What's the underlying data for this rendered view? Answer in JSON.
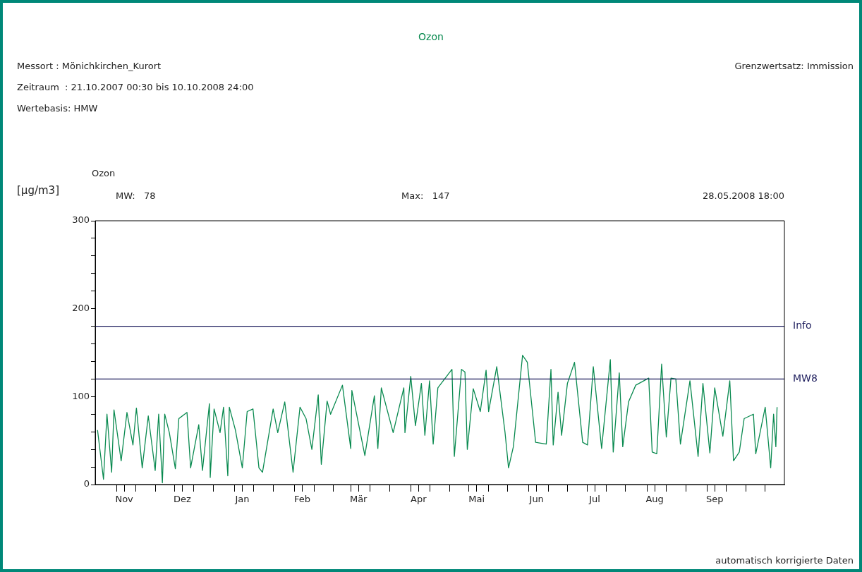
{
  "chart_data": {
    "type": "line",
    "title": "Ozon",
    "subtitle": "Ozon",
    "ylabel": "[μg/m3]",
    "annotations": [
      "Messort : Mönichkirchen_Kurort",
      "Grenzwertsatz: Immission",
      "Zeitraum  : 21.10.2007 00:30 bis 10.10.2008 24:00",
      "Wertebasis: HMW",
      "MW:   78",
      "Max:   147",
      "28.05.2008 18:00",
      "automatisch korrigierte Daten"
    ],
    "x": [
      "2007-10-22T05:00",
      "2007-10-25T07:00",
      "2007-10-27T02:00",
      "2007-10-29T12:00",
      "2007-10-30T17:00",
      "2007-11-03T10:00",
      "2007-11-06T10:00",
      "2007-11-09T12:00",
      "2007-11-11T07:00",
      "2007-11-14T07:00",
      "2007-11-17T10:00",
      "2007-11-21T00:00",
      "2007-11-22T19:00",
      "2007-11-24T17:00",
      "2007-11-25T22:00",
      "2007-11-28T07:00",
      "2007-12-01T10:00",
      "2007-12-03T05:00",
      "2007-12-07T10:00",
      "2007-12-09T07:00",
      "2007-12-13T12:00",
      "2007-12-15T10:00",
      "2007-12-19T00:00",
      "2007-12-19T10:00",
      "2007-12-21T10:00",
      "2007-12-24T12:00",
      "2007-12-26T07:00",
      "2007-12-28T12:00",
      "2007-12-29T07:00",
      "2008-01-01T10:00",
      "2008-01-05T00:00",
      "2008-01-07T12:00",
      "2008-01-10T12:00",
      "2008-01-13T14:00",
      "2008-01-15T10:00",
      "2008-01-20T22:00",
      "2008-01-23T07:00",
      "2008-01-26T22:00",
      "2008-01-31T05:00",
      "2008-02-03T19:00",
      "2008-02-06T22:00",
      "2008-02-09T22:00",
      "2008-02-13T05:00",
      "2008-02-14T19:00",
      "2008-02-17T19:00",
      "2008-02-19T14:00",
      "2008-02-25T17:00",
      "2008-03-01T00:00",
      "2008-03-01T14:00",
      "2008-03-08T07:00",
      "2008-03-13T05:00",
      "2008-03-15T00:00",
      "2008-03-16T19:00",
      "2008-03-22T22:00",
      "2008-03-28T10:00",
      "2008-03-29T00:00",
      "2008-04-01T00:00",
      "2008-04-03T10:00",
      "2008-04-06T12:00",
      "2008-04-08T07:00",
      "2008-04-10T17:00",
      "2008-04-12T14:00",
      "2008-04-15T00:00",
      "2008-04-22T07:00",
      "2008-04-23T12:00",
      "2008-04-27T05:00",
      "2008-04-29T00:00",
      "2008-04-30T05:00",
      "2008-05-03T07:00",
      "2008-05-06T22:00",
      "2008-05-09T22:00",
      "2008-05-11T05:00",
      "2008-05-15T10:00",
      "2008-05-19T17:00",
      "2008-05-21T12:00",
      "2008-05-24T00:00",
      "2008-05-28T18:00",
      "2008-05-31T05:00",
      "2008-06-02T17:00",
      "2008-06-04T12:00",
      "2008-06-10T00:00",
      "2008-06-12T10:00",
      "2008-06-13T14:00",
      "2008-06-16T02:00",
      "2008-06-17T22:00",
      "2008-06-20T22:00",
      "2008-06-24T14:00",
      "2008-06-28T19:00",
      "2008-07-01T07:00",
      "2008-07-04T07:00",
      "2008-07-08T14:00",
      "2008-07-13T02:00",
      "2008-07-14T14:00",
      "2008-07-17T17:00",
      "2008-07-19T12:00",
      "2008-07-22T12:00",
      "2008-07-26T05:00",
      "2008-08-01T22:00",
      "2008-08-03T17:00",
      "2008-08-06T02:00",
      "2008-08-08T14:00",
      "2008-08-11T00:00",
      "2008-08-13T10:00",
      "2008-08-15T22:00",
      "2008-08-18T07:00",
      "2008-08-23T05:00",
      "2008-08-27T10:00",
      "2008-08-29T22:00",
      "2008-09-02T12:00",
      "2008-09-05T00:00",
      "2008-09-09T05:00",
      "2008-09-12T19:00",
      "2008-09-14T17:00",
      "2008-09-17T17:00",
      "2008-09-20T05:00",
      "2008-09-25T00:00",
      "2008-09-26T05:00",
      "2008-10-01T02:00",
      "2008-10-03T22:00",
      "2008-10-05T10:00",
      "2008-10-06T14:00",
      "2008-10-07T05:00"
    ],
    "series": [
      {
        "color": "#0a8a50",
        "values": [
          62,
          6,
          80,
          14,
          85,
          27,
          82,
          45,
          87,
          19,
          78,
          16,
          80,
          2,
          80,
          59,
          18,
          75,
          82,
          19,
          68,
          16,
          92,
          8,
          86,
          59,
          88,
          10,
          88,
          62,
          19,
          83,
          86,
          19,
          14,
          86,
          59,
          94,
          14,
          88,
          75,
          40,
          102,
          23,
          95,
          80,
          113,
          41,
          107,
          33,
          101,
          41,
          110,
          59,
          110,
          59,
          123,
          67,
          115,
          56,
          118,
          46,
          110,
          131,
          32,
          131,
          128,
          40,
          109,
          83,
          130,
          83,
          134,
          59,
          19,
          43,
          147,
          139,
          86,
          48,
          46,
          131,
          45,
          105,
          56,
          115,
          139,
          48,
          45,
          134,
          41,
          142,
          37,
          127,
          43,
          94,
          113,
          121,
          37,
          35,
          137,
          54,
          121,
          120,
          46,
          118,
          32,
          115,
          36,
          110,
          55,
          118,
          27,
          37,
          75,
          80,
          35,
          88,
          19,
          80,
          43,
          88
        ]
      }
    ],
    "xlim": [
      "2007-10-21T00:30",
      "2008-10-11T00:00"
    ],
    "xticks": [
      {
        "value": "2007-11-01",
        "label": null
      },
      {
        "value": "2007-11-11",
        "label": null
      },
      {
        "value": "2007-11-05",
        "label": "Nov"
      },
      {
        "value": "2007-11-21",
        "label": null
      },
      {
        "value": "2007-12-01",
        "label": null
      },
      {
        "value": "2007-12-11",
        "label": null
      },
      {
        "value": "2007-12-05",
        "label": "Dez"
      },
      {
        "value": "2007-12-21",
        "label": null
      },
      {
        "value": "2008-01-01",
        "label": null
      },
      {
        "value": "2008-01-11",
        "label": null
      },
      {
        "value": "2008-01-05",
        "label": "Jan"
      },
      {
        "value": "2008-01-21",
        "label": null
      },
      {
        "value": "2008-02-01",
        "label": null
      },
      {
        "value": "2008-02-11",
        "label": null
      },
      {
        "value": "2008-02-05",
        "label": "Feb"
      },
      {
        "value": "2008-02-21",
        "label": null
      },
      {
        "value": "2008-03-01",
        "label": null
      },
      {
        "value": "2008-03-11",
        "label": null
      },
      {
        "value": "2008-03-05",
        "label": "Mär"
      },
      {
        "value": "2008-03-21",
        "label": null
      },
      {
        "value": "2008-04-01",
        "label": null
      },
      {
        "value": "2008-04-11",
        "label": null
      },
      {
        "value": "2008-04-05",
        "label": "Apr"
      },
      {
        "value": "2008-04-21",
        "label": null
      },
      {
        "value": "2008-05-01",
        "label": null
      },
      {
        "value": "2008-05-11",
        "label": null
      },
      {
        "value": "2008-05-05",
        "label": "Mai"
      },
      {
        "value": "2008-05-21",
        "label": null
      },
      {
        "value": "2008-06-01",
        "label": null
      },
      {
        "value": "2008-06-11",
        "label": null
      },
      {
        "value": "2008-06-05",
        "label": "Jun"
      },
      {
        "value": "2008-06-21",
        "label": null
      },
      {
        "value": "2008-07-01",
        "label": null
      },
      {
        "value": "2008-07-11",
        "label": null
      },
      {
        "value": "2008-07-05",
        "label": "Jul"
      },
      {
        "value": "2008-07-21",
        "label": null
      },
      {
        "value": "2008-08-01",
        "label": null
      },
      {
        "value": "2008-08-11",
        "label": null
      },
      {
        "value": "2008-08-05",
        "label": "Aug"
      },
      {
        "value": "2008-08-21",
        "label": null
      },
      {
        "value": "2008-09-01",
        "label": null
      },
      {
        "value": "2008-09-11",
        "label": null
      },
      {
        "value": "2008-09-05",
        "label": "Sep"
      },
      {
        "value": "2008-09-21",
        "label": null
      },
      {
        "value": "2008-10-01",
        "label": null
      }
    ],
    "ylim": [
      0,
      300
    ],
    "yticks": [
      0,
      {
        "value": 20,
        "label": null
      },
      {
        "value": 40,
        "label": null
      },
      {
        "value": 60,
        "label": null
      },
      {
        "value": 80,
        "label": null
      },
      100,
      {
        "value": 120,
        "label": null
      },
      {
        "value": 140,
        "label": null
      },
      {
        "value": 160,
        "label": null
      },
      {
        "value": 180,
        "label": null
      },
      200,
      {
        "value": 220,
        "label": null
      },
      {
        "value": 240,
        "label": null
      },
      {
        "value": 260,
        "label": null
      },
      {
        "value": 280,
        "label": null
      },
      300
    ],
    "ref_lines": [
      {
        "axis": "y",
        "value": 180,
        "label": "Info",
        "color": "#1c1c5c"
      },
      {
        "axis": "y",
        "value": 120,
        "label": "MW8",
        "color": "#1c1c5c"
      }
    ],
    "legend": false,
    "marker": "none"
  }
}
